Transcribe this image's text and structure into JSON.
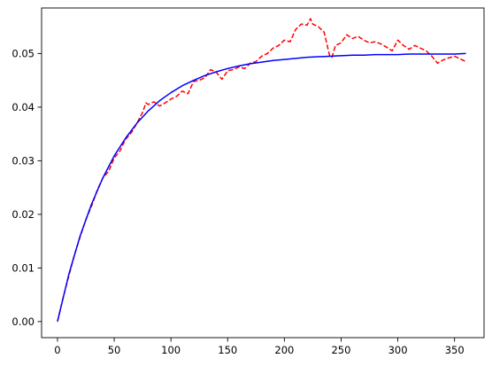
{
  "chart_data": {
    "type": "line",
    "title": "",
    "xlabel": "",
    "ylabel": "",
    "xlim": [
      -14,
      376
    ],
    "ylim": [
      -0.003,
      0.0585
    ],
    "grid": false,
    "legend": "none",
    "x_ticks": [
      0,
      50,
      100,
      150,
      200,
      250,
      300,
      350
    ],
    "x_tick_labels": [
      "0",
      "50",
      "100",
      "150",
      "200",
      "250",
      "300",
      "350"
    ],
    "y_ticks": [
      0.0,
      0.01,
      0.02,
      0.03,
      0.04,
      0.05
    ],
    "y_tick_labels": [
      "0.00",
      "0.01",
      "0.02",
      "0.03",
      "0.04",
      "0.05"
    ],
    "series": [
      {
        "style": "dashed",
        "color": "#ff0000",
        "x": [
          0,
          5,
          10,
          15,
          20,
          25,
          30,
          35,
          40,
          45,
          50,
          55,
          60,
          65,
          70,
          75,
          78,
          80,
          85,
          90,
          95,
          100,
          105,
          110,
          115,
          120,
          125,
          130,
          135,
          140,
          145,
          150,
          155,
          160,
          165,
          170,
          175,
          180,
          185,
          190,
          195,
          200,
          205,
          210,
          215,
          220,
          223,
          225,
          230,
          235,
          240,
          242,
          245,
          250,
          255,
          260,
          265,
          270,
          275,
          280,
          285,
          290,
          295,
          300,
          305,
          310,
          315,
          320,
          325,
          330,
          335,
          340,
          345,
          350,
          355,
          360
        ],
        "y": [
          0.0,
          0.0045,
          0.0085,
          0.0125,
          0.0158,
          0.019,
          0.0215,
          0.0245,
          0.0268,
          0.028,
          0.0305,
          0.0318,
          0.034,
          0.0352,
          0.037,
          0.039,
          0.0408,
          0.0405,
          0.041,
          0.0402,
          0.0408,
          0.0415,
          0.042,
          0.043,
          0.0425,
          0.0448,
          0.045,
          0.0455,
          0.047,
          0.0465,
          0.0452,
          0.0468,
          0.047,
          0.0475,
          0.0472,
          0.0482,
          0.0485,
          0.0495,
          0.05,
          0.051,
          0.0515,
          0.0525,
          0.0522,
          0.0545,
          0.0555,
          0.0553,
          0.0565,
          0.0555,
          0.055,
          0.054,
          0.0495,
          0.0493,
          0.0515,
          0.052,
          0.0535,
          0.0528,
          0.0532,
          0.0525,
          0.052,
          0.0522,
          0.0518,
          0.0512,
          0.0505,
          0.0525,
          0.0515,
          0.0508,
          0.0515,
          0.051,
          0.0505,
          0.0495,
          0.0482,
          0.0488,
          0.0492,
          0.0495,
          0.049,
          0.0485
        ]
      },
      {
        "style": "solid",
        "color": "#0000ff",
        "model": "y = 0.05 * (1 - exp(-x / 52))",
        "x": [
          0,
          10,
          20,
          30,
          40,
          50,
          60,
          70,
          80,
          90,
          100,
          110,
          120,
          130,
          140,
          150,
          160,
          170,
          180,
          190,
          200,
          210,
          220,
          230,
          240,
          250,
          260,
          270,
          280,
          290,
          300,
          310,
          320,
          330,
          340,
          350,
          360
        ],
        "y": [
          0.0,
          0.0088,
          0.016,
          0.0219,
          0.0268,
          0.0309,
          0.0342,
          0.037,
          0.0393,
          0.0412,
          0.0427,
          0.044,
          0.045,
          0.0459,
          0.0466,
          0.0472,
          0.0477,
          0.0481,
          0.0484,
          0.0487,
          0.0489,
          0.0491,
          0.0493,
          0.0494,
          0.0495,
          0.0496,
          0.0497,
          0.0497,
          0.0498,
          0.0498,
          0.0498,
          0.0499,
          0.0499,
          0.0499,
          0.0499,
          0.0499,
          0.05
        ]
      }
    ]
  }
}
